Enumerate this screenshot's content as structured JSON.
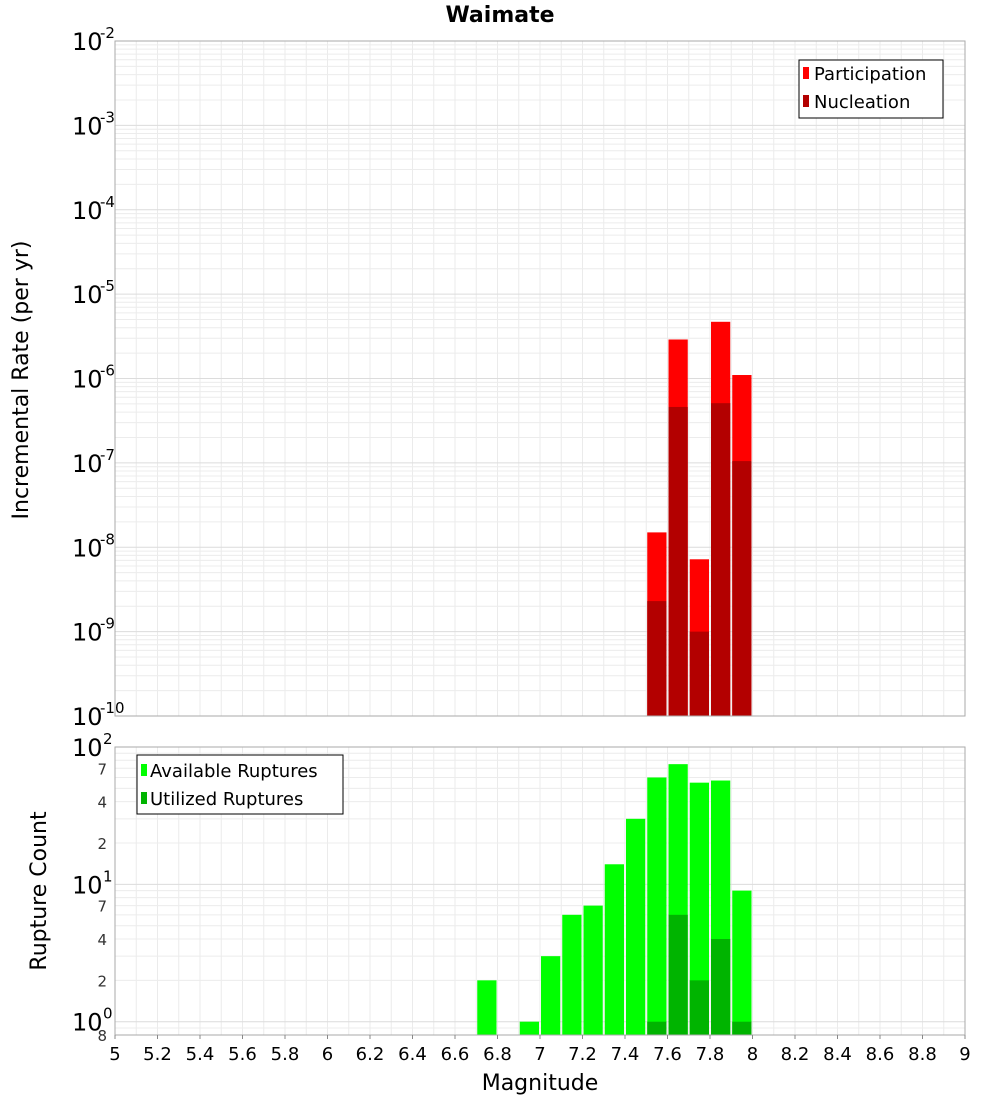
{
  "chart_data": [
    {
      "type": "bar",
      "title": "Waimate",
      "ylabel": "Incremental Rate (per yr)",
      "yscale": "log",
      "ylim": [
        1e-10,
        0.01
      ],
      "xlim": [
        5,
        9
      ],
      "bar_width": 0.1,
      "y_ticks": [
        {
          "base": "10",
          "exp": "-2"
        },
        {
          "base": "10",
          "exp": "-3"
        },
        {
          "base": "10",
          "exp": "-4"
        },
        {
          "base": "10",
          "exp": "-5"
        },
        {
          "base": "10",
          "exp": "-6"
        },
        {
          "base": "10",
          "exp": "-7"
        },
        {
          "base": "10",
          "exp": "-8"
        },
        {
          "base": "10",
          "exp": "-9"
        },
        {
          "base": "10",
          "exp": "-10"
        }
      ],
      "legend": {
        "position": "top-right"
      },
      "grid": true,
      "series": [
        {
          "name": "Participation",
          "color": "#ff0000",
          "x": [
            7.55,
            7.65,
            7.75,
            7.85,
            7.95
          ],
          "values": [
            1.5e-08,
            2.9e-06,
            7.2e-09,
            4.7e-06,
            1.1e-06
          ]
        },
        {
          "name": "Nucleation",
          "color": "#b30000",
          "x": [
            7.55,
            7.65,
            7.75,
            7.85,
            7.95
          ],
          "values": [
            2.3e-09,
            4.6e-07,
            1e-09,
            5.1e-07,
            1.05e-07
          ]
        }
      ]
    },
    {
      "type": "bar",
      "ylabel": "Rupture Count",
      "xlabel": "Magnitude",
      "yscale": "log",
      "ylim": [
        0.8,
        100
      ],
      "xlim": [
        5,
        9
      ],
      "bar_width": 0.1,
      "y_ticks": [
        {
          "base": "10",
          "exp": "2"
        },
        {
          "base": "10",
          "exp": "1"
        },
        {
          "base": "10",
          "exp": "0"
        }
      ],
      "y_minor_ticks": [
        {
          "value": 70,
          "label": "7"
        },
        {
          "value": 40,
          "label": "4"
        },
        {
          "value": 20,
          "label": "2"
        },
        {
          "value": 7,
          "label": "7"
        },
        {
          "value": 4,
          "label": "4"
        },
        {
          "value": 2,
          "label": "2"
        },
        {
          "value": 0.8,
          "label": "8"
        }
      ],
      "x_ticks": [
        "5",
        "5.2",
        "5.4",
        "5.6",
        "5.8",
        "6",
        "6.2",
        "6.4",
        "6.6",
        "6.8",
        "7",
        "7.2",
        "7.4",
        "7.6",
        "7.8",
        "8",
        "8.2",
        "8.4",
        "8.6",
        "8.8",
        "9"
      ],
      "legend": {
        "position": "top-left"
      },
      "grid": true,
      "series": [
        {
          "name": "Available Ruptures",
          "color": "#00ff00",
          "x": [
            6.75,
            6.95,
            7.05,
            7.15,
            7.25,
            7.35,
            7.45,
            7.55,
            7.65,
            7.75,
            7.85,
            7.95
          ],
          "values": [
            2,
            1,
            3,
            6,
            7,
            14,
            30,
            60,
            75,
            55,
            57,
            9
          ]
        },
        {
          "name": "Utilized Ruptures",
          "color": "#00b400",
          "x": [
            7.55,
            7.65,
            7.75,
            7.85,
            7.95
          ],
          "values": [
            1,
            6,
            2,
            4,
            1
          ]
        }
      ]
    }
  ]
}
